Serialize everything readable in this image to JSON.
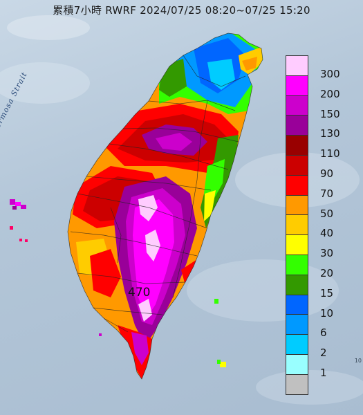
{
  "title": "累積7小時 RWRF 2024/07/25 08:20~07/25 15:20",
  "strait_label": "Formosa Strait",
  "edge_label": "10",
  "max_label": "470",
  "legend": [
    {
      "label": "300",
      "color": "#ffccff"
    },
    {
      "label": "200",
      "color": "#ff00ff"
    },
    {
      "label": "150",
      "color": "#cc00cc"
    },
    {
      "label": "130",
      "color": "#990099"
    },
    {
      "label": "110",
      "color": "#990000"
    },
    {
      "label": "90",
      "color": "#cc0000"
    },
    {
      "label": "70",
      "color": "#ff0000"
    },
    {
      "label": "50",
      "color": "#ff9900"
    },
    {
      "label": "40",
      "color": "#ffcc00"
    },
    {
      "label": "30",
      "color": "#ffff00"
    },
    {
      "label": "20",
      "color": "#33ff00"
    },
    {
      "label": "15",
      "color": "#339900"
    },
    {
      "label": "10",
      "color": "#0066ff"
    },
    {
      "label": "6",
      "color": "#0099ff"
    },
    {
      "label": "2",
      "color": "#00ccff"
    },
    {
      "label": "1",
      "color": "#99ffff"
    },
    {
      "label": "",
      "color": "#c0c0c0"
    }
  ]
}
